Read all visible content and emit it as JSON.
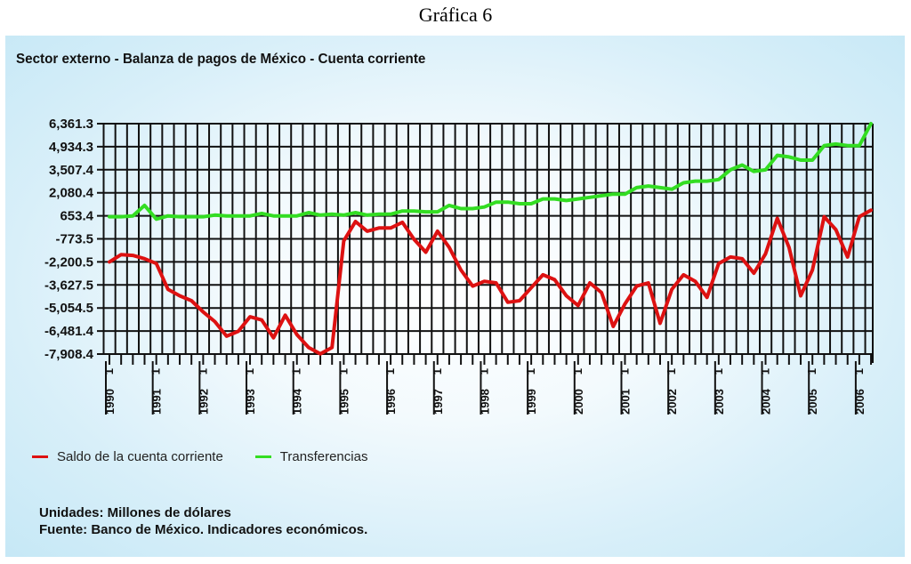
{
  "figure_caption": "Gráfica 6",
  "chart_data": {
    "type": "line",
    "title": "Sector externo - Balanza de pagos de México - Cuenta corriente",
    "xlabel": "",
    "ylabel": "",
    "frequency": "quarterly",
    "x_start": "1990 Q1",
    "x_end": "2006 Q2",
    "year_ticks": [
      "1990",
      "1991",
      "1992",
      "1993",
      "1994",
      "1995",
      "1996",
      "1997",
      "1998",
      "1999",
      "2000",
      "2001",
      "2002",
      "2003",
      "2004",
      "2005",
      "2006"
    ],
    "quarter_tick_label": "1",
    "ytick_labels": [
      "6,361.3",
      "4,934.3",
      "3,507.4",
      "2,080.4",
      "653.4",
      "-773.5",
      "-2,200.5",
      "-3,627.5",
      "-5,054.5",
      "-6,481.4",
      "-7,908.4"
    ],
    "ylim": [
      -7908.4,
      6361.3
    ],
    "grid": true,
    "legend_position": "bottom-left",
    "series": [
      {
        "name": "Saldo de la cuenta corriente",
        "color": "#dd1111",
        "values": [
          -2200,
          -1750,
          -1800,
          -2000,
          -2300,
          -3900,
          -4300,
          -4600,
          -5300,
          -5900,
          -6800,
          -6500,
          -5600,
          -5800,
          -6900,
          -5500,
          -6700,
          -7500,
          -7900,
          -7500,
          -900,
          300,
          -300,
          -100,
          -100,
          250,
          -800,
          -1600,
          -300,
          -1300,
          -2700,
          -3700,
          -3400,
          -3500,
          -4700,
          -4600,
          -3800,
          -3000,
          -3300,
          -4300,
          -4900,
          -3500,
          -4100,
          -6200,
          -4800,
          -3700,
          -3500,
          -6000,
          -3900,
          -3000,
          -3400,
          -4400,
          -2300,
          -1900,
          -2000,
          -2900,
          -1700,
          500,
          -1300,
          -4300,
          -2700,
          600,
          -200,
          -1900,
          600,
          1000
        ]
      },
      {
        "name": "Transferencias",
        "color": "#33dd22",
        "values": [
          600,
          600,
          650,
          1300,
          450,
          650,
          600,
          600,
          600,
          700,
          650,
          650,
          650,
          800,
          650,
          650,
          650,
          850,
          700,
          750,
          700,
          850,
          700,
          750,
          750,
          950,
          950,
          900,
          900,
          1300,
          1100,
          1100,
          1200,
          1500,
          1500,
          1400,
          1400,
          1700,
          1700,
          1600,
          1700,
          1800,
          1900,
          2000,
          2000,
          2400,
          2500,
          2400,
          2300,
          2700,
          2800,
          2800,
          2900,
          3500,
          3800,
          3400,
          3500,
          4400,
          4300,
          4100,
          4100,
          5000,
          5100,
          5000,
          5000,
          6361
        ]
      }
    ]
  },
  "notes": {
    "units": "Unidades: Millones de dólares",
    "source": "Fuente: Banco de México. Indicadores económicos."
  }
}
